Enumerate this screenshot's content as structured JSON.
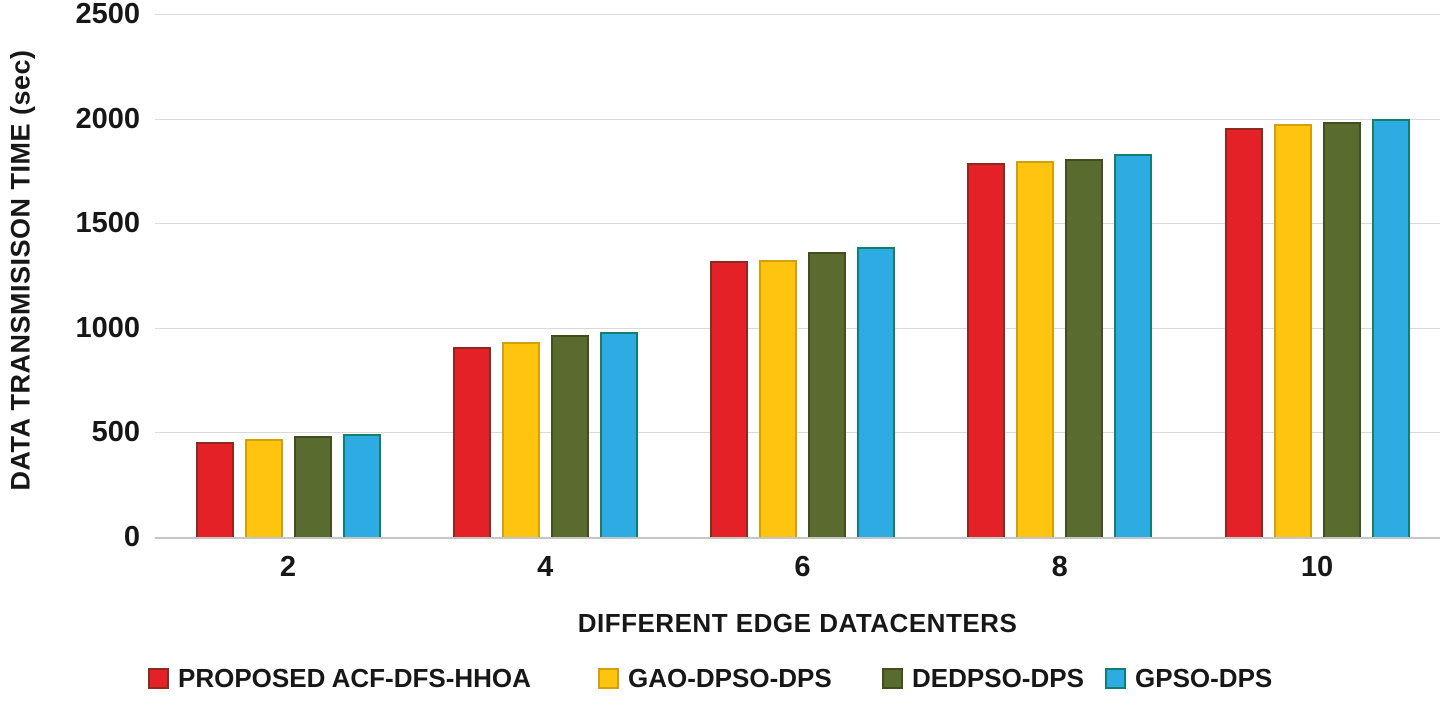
{
  "chart_data": {
    "type": "bar",
    "title": "",
    "xlabel": "DIFFERENT EDGE DATACENTERS",
    "ylabel": "DATA TRANSMISISON TIME (sec)",
    "categories": [
      "2",
      "4",
      "6",
      "8",
      "10"
    ],
    "series": [
      {
        "name": "PROPOSED ACF-DFS-HHOA",
        "color": "#e42127",
        "border_color": "#8c2a20",
        "values": [
          455,
          910,
          1320,
          1790,
          1955
        ]
      },
      {
        "name": "GAO-DPSO-DPS",
        "color": "#ffc40f",
        "border_color": "#d3a00c",
        "values": [
          468,
          930,
          1322,
          1795,
          1975
        ]
      },
      {
        "name": "DEDPSO-DPS",
        "color": "#5a6b2f",
        "border_color": "#414e20",
        "values": [
          482,
          965,
          1360,
          1805,
          1985
        ]
      },
      {
        "name": "GPSO-DPS",
        "color": "#2cace3",
        "border_color": "#14806c",
        "values": [
          490,
          978,
          1385,
          1830,
          1998
        ]
      }
    ],
    "y_ticks": [
      0,
      500,
      1000,
      1500,
      2000,
      2500
    ],
    "ylim": [
      0,
      2500
    ],
    "grid": true,
    "legend_position": "bottom",
    "gridline_color": "#d9d9d9",
    "axis_line_color": "#c6c6c6",
    "text_color": "#171717"
  }
}
